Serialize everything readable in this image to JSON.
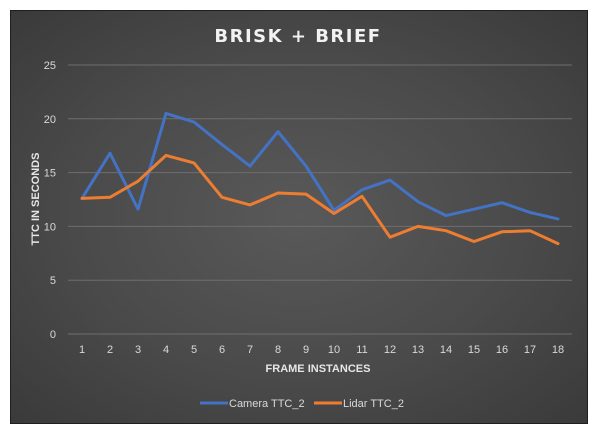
{
  "chart_data": {
    "type": "line",
    "title": "BRISK + BRIEF",
    "xlabel": "FRAME INSTANCES",
    "ylabel": "TTC IN SECONDS",
    "categories": [
      "1",
      "2",
      "3",
      "4",
      "5",
      "6",
      "7",
      "8",
      "9",
      "10",
      "11",
      "12",
      "13",
      "14",
      "15",
      "16",
      "17",
      "18"
    ],
    "ylim": [
      0,
      25
    ],
    "yticks": [
      "0",
      "5",
      "10",
      "15",
      "20",
      "25"
    ],
    "grid": true,
    "legend_position": "bottom",
    "series": [
      {
        "name": "Camera TTC_2",
        "color": "#4472c4",
        "values": [
          12.6,
          16.8,
          11.6,
          20.5,
          19.7,
          17.6,
          15.6,
          18.8,
          15.6,
          11.5,
          13.4,
          14.3,
          12.3,
          11.0,
          11.6,
          12.2,
          11.3,
          10.7
        ]
      },
      {
        "name": "Lidar TTC_2",
        "color": "#ed7d31",
        "values": [
          12.6,
          12.7,
          14.2,
          16.6,
          15.9,
          12.7,
          12.0,
          13.1,
          13.0,
          11.2,
          12.8,
          9.0,
          10.0,
          9.6,
          8.6,
          9.5,
          9.6,
          8.4
        ]
      }
    ]
  }
}
